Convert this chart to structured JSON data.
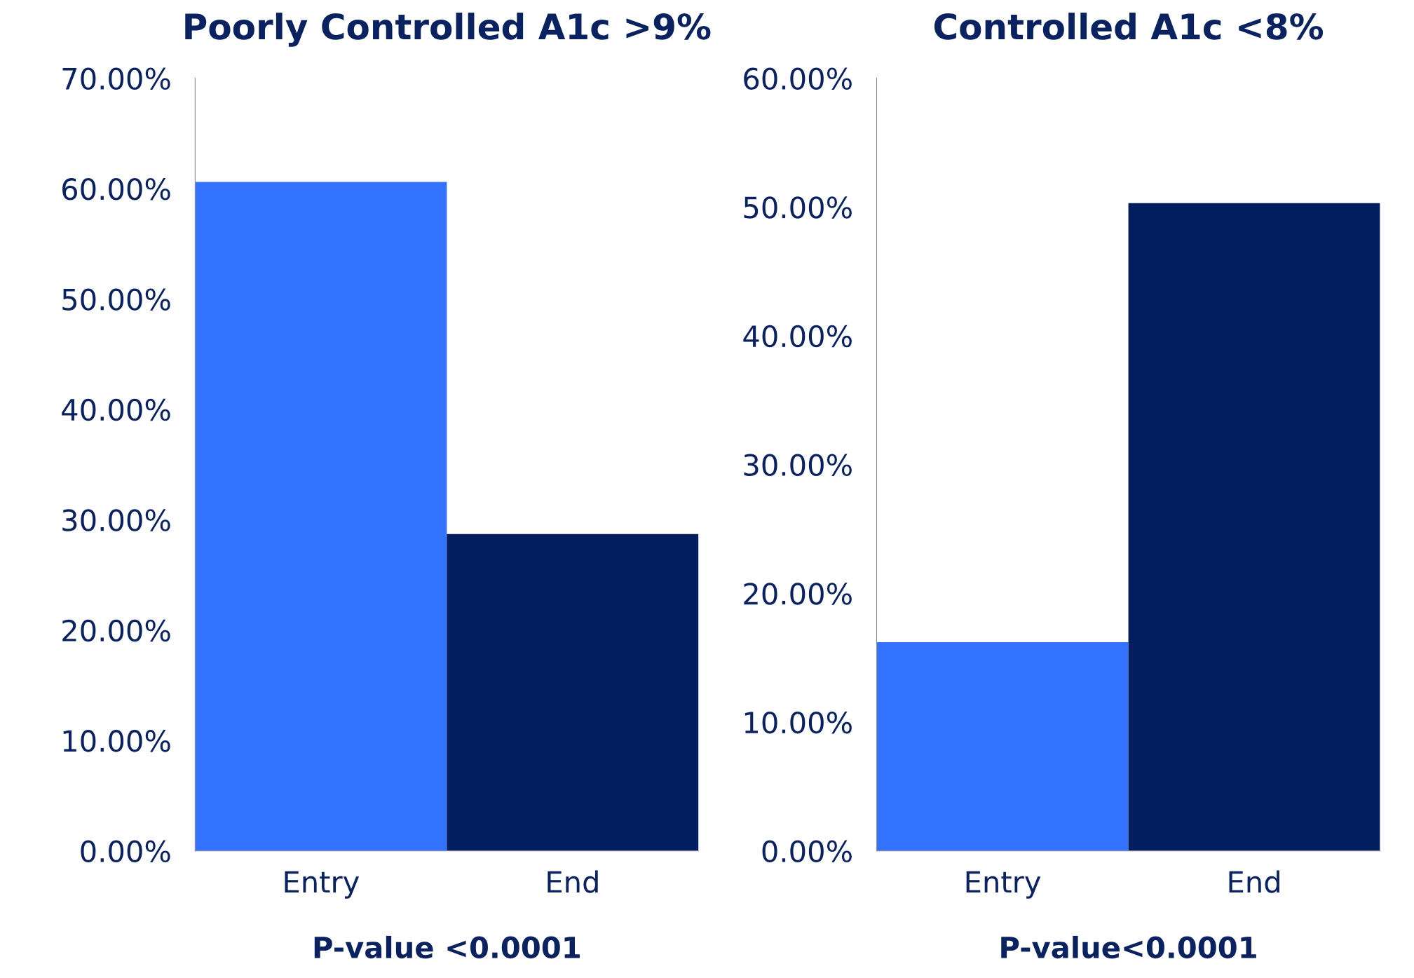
{
  "chart_data": [
    {
      "type": "bar",
      "title": "Poorly Controlled A1c >9%",
      "categories": [
        "Entry",
        "End"
      ],
      "values": [
        60.6,
        28.7
      ],
      "colors": [
        "#3272ff",
        "#031e5e"
      ],
      "ylim": [
        0,
        70
      ],
      "yticks": [
        {
          "value": 0,
          "label": "0.00%"
        },
        {
          "value": 10,
          "label": "10.00%"
        },
        {
          "value": 20,
          "label": "20.00%"
        },
        {
          "value": 30,
          "label": "30.00%"
        },
        {
          "value": 40,
          "label": "40.00%"
        },
        {
          "value": 50,
          "label": "50.00%"
        },
        {
          "value": 60,
          "label": "60.00%"
        },
        {
          "value": 70,
          "label": "70.00%"
        }
      ],
      "annotations": [
        "P-value <0.0001"
      ],
      "grid": false,
      "legend": false
    },
    {
      "type": "bar",
      "title": "Controlled A1c <8%",
      "categories": [
        "Entry",
        "End"
      ],
      "values": [
        16.2,
        50.3
      ],
      "colors": [
        "#3272ff",
        "#031e5e"
      ],
      "ylim": [
        0,
        60
      ],
      "yticks": [
        {
          "value": 0,
          "label": "0.00%"
        },
        {
          "value": 10,
          "label": "10.00%"
        },
        {
          "value": 20,
          "label": "20.00%"
        },
        {
          "value": 30,
          "label": "30.00%"
        },
        {
          "value": 40,
          "label": "40.00%"
        },
        {
          "value": 50,
          "label": "50.00%"
        },
        {
          "value": 60,
          "label": "60.00%"
        }
      ],
      "annotations": [
        "P-value<0.0001"
      ],
      "grid": false,
      "legend": false
    }
  ]
}
